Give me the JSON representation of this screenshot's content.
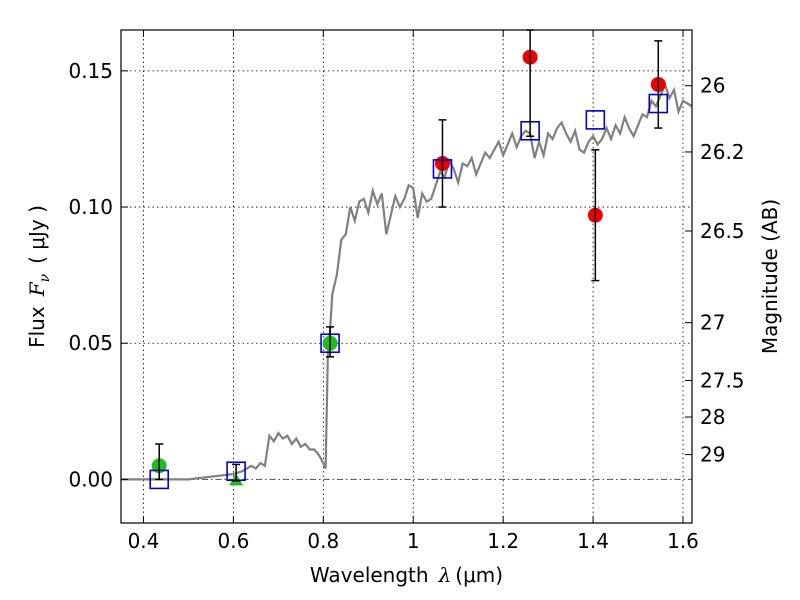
{
  "chart_data": {
    "type": "scatter",
    "xlabel": {
      "text": "Wavelength",
      "symbol": "λ",
      "unit": "(μm)"
    },
    "ylabel": {
      "text": "Flux",
      "symbol": "F",
      "subscript": "ν",
      "unit": "( μJy )"
    },
    "y2label": "Magnitude (AB)",
    "xlim": [
      0.35,
      1.62
    ],
    "ylim": [
      -0.016,
      0.165
    ],
    "x_ticks": [
      {
        "value": 0.4,
        "label": "0.4"
      },
      {
        "value": 0.6,
        "label": "0.6"
      },
      {
        "value": 0.8,
        "label": "0.8"
      },
      {
        "value": 1.0,
        "label": "1"
      },
      {
        "value": 1.2,
        "label": "1.2"
      },
      {
        "value": 1.4,
        "label": "1.4"
      },
      {
        "value": 1.6,
        "label": "1.6"
      }
    ],
    "y_ticks": [
      {
        "value": 0.0,
        "label": "0.00"
      },
      {
        "value": 0.05,
        "label": "0.05"
      },
      {
        "value": 0.1,
        "label": "0.10"
      },
      {
        "value": 0.15,
        "label": "0.15"
      }
    ],
    "y2_ticks": [
      {
        "value": 26,
        "label": "26"
      },
      {
        "value": 26.2,
        "label": "26.2"
      },
      {
        "value": 26.5,
        "label": "26.5"
      },
      {
        "value": 27,
        "label": "27"
      },
      {
        "value": 27.5,
        "label": "27.5"
      },
      {
        "value": 28,
        "label": "28"
      },
      {
        "value": 29,
        "label": "29"
      }
    ],
    "grid": true,
    "zero_line": true,
    "colors": {
      "model": "#808080",
      "green": "#22bb22",
      "red": "#ee0000",
      "blue_square": "#0000cc",
      "error_bar": "#000000"
    },
    "series": [
      {
        "kind": "model_sed_line",
        "x": [
          0.35,
          0.5,
          0.55,
          0.6,
          0.62,
          0.64,
          0.65,
          0.66,
          0.67,
          0.68,
          0.69,
          0.7,
          0.71,
          0.72,
          0.73,
          0.74,
          0.75,
          0.76,
          0.77,
          0.78,
          0.79,
          0.8,
          0.805,
          0.81,
          0.815,
          0.82,
          0.83,
          0.84,
          0.85,
          0.86,
          0.87,
          0.88,
          0.89,
          0.9,
          0.91,
          0.92,
          0.93,
          0.94,
          0.95,
          0.96,
          0.97,
          0.98,
          0.99,
          1.0,
          1.01,
          1.02,
          1.03,
          1.04,
          1.05,
          1.06,
          1.07,
          1.08,
          1.09,
          1.1,
          1.11,
          1.12,
          1.13,
          1.14,
          1.15,
          1.16,
          1.17,
          1.18,
          1.19,
          1.2,
          1.21,
          1.22,
          1.23,
          1.24,
          1.25,
          1.26,
          1.27,
          1.28,
          1.29,
          1.3,
          1.31,
          1.32,
          1.33,
          1.34,
          1.35,
          1.36,
          1.37,
          1.38,
          1.39,
          1.4,
          1.41,
          1.42,
          1.43,
          1.44,
          1.45,
          1.46,
          1.47,
          1.48,
          1.49,
          1.5,
          1.51,
          1.52,
          1.53,
          1.54,
          1.55,
          1.56,
          1.57,
          1.58,
          1.59,
          1.6,
          1.61,
          1.62
        ],
        "y": [
          0.0,
          0.0,
          0.001,
          0.002,
          0.003,
          0.005,
          0.004,
          0.006,
          0.005,
          0.016,
          0.014,
          0.017,
          0.015,
          0.016,
          0.013,
          0.015,
          0.012,
          0.013,
          0.011,
          0.011,
          0.009,
          0.006,
          0.004,
          0.045,
          0.055,
          0.068,
          0.075,
          0.088,
          0.09,
          0.1,
          0.095,
          0.102,
          0.103,
          0.098,
          0.106,
          0.101,
          0.105,
          0.09,
          0.097,
          0.104,
          0.1,
          0.103,
          0.108,
          0.107,
          0.096,
          0.105,
          0.102,
          0.103,
          0.108,
          0.113,
          0.111,
          0.117,
          0.114,
          0.109,
          0.116,
          0.115,
          0.118,
          0.112,
          0.116,
          0.12,
          0.118,
          0.121,
          0.124,
          0.119,
          0.123,
          0.127,
          0.122,
          0.126,
          0.128,
          0.127,
          0.118,
          0.124,
          0.119,
          0.127,
          0.125,
          0.129,
          0.131,
          0.127,
          0.124,
          0.128,
          0.121,
          0.12,
          0.124,
          0.126,
          0.123,
          0.125,
          0.129,
          0.125,
          0.13,
          0.127,
          0.133,
          0.129,
          0.126,
          0.13,
          0.134,
          0.133,
          0.139,
          0.137,
          0.141,
          0.145,
          0.14,
          0.143,
          0.135,
          0.139,
          0.138,
          0.137
        ]
      },
      {
        "kind": "green_circles",
        "points": [
          {
            "x": 0.435,
            "y": 0.005,
            "err_low": 0.0,
            "err_high": 0.013
          },
          {
            "x": 0.815,
            "y": 0.05,
            "err_low": 0.045,
            "err_high": 0.056
          }
        ]
      },
      {
        "kind": "green_triangle",
        "points": [
          {
            "x": 0.606,
            "y": 0.0
          }
        ]
      },
      {
        "kind": "red_circles",
        "points": [
          {
            "x": 1.065,
            "y": 0.116,
            "err_low": 0.1,
            "err_high": 0.132
          },
          {
            "x": 1.26,
            "y": 0.155,
            "err_low": 0.126,
            "err_high": 0.165
          },
          {
            "x": 1.405,
            "y": 0.097,
            "err_low": 0.073,
            "err_high": 0.121
          },
          {
            "x": 1.545,
            "y": 0.145,
            "err_low": 0.129,
            "err_high": 0.161
          }
        ]
      },
      {
        "kind": "blue_squares",
        "points": [
          {
            "x": 0.435,
            "y": 0.0
          },
          {
            "x": 0.606,
            "y": 0.003
          },
          {
            "x": 0.815,
            "y": 0.05
          },
          {
            "x": 1.065,
            "y": 0.114
          },
          {
            "x": 1.26,
            "y": 0.128
          },
          {
            "x": 1.405,
            "y": 0.132
          },
          {
            "x": 1.545,
            "y": 0.138
          }
        ]
      }
    ]
  }
}
